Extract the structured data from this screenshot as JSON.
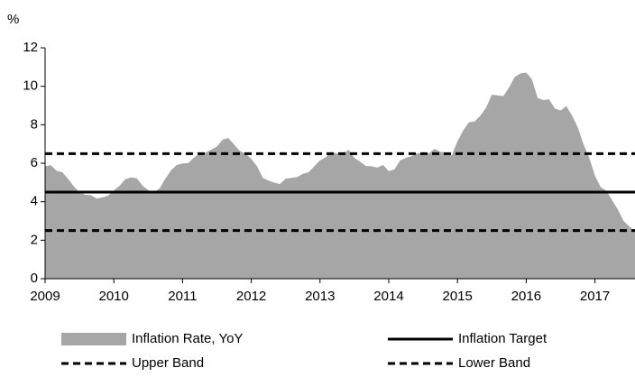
{
  "chart_data": {
    "type": "area",
    "y_label": "%",
    "x": [
      2009,
      2009.083,
      2009.167,
      2009.25,
      2009.333,
      2009.417,
      2009.5,
      2009.583,
      2009.667,
      2009.75,
      2009.833,
      2009.917,
      2010,
      2010.083,
      2010.167,
      2010.25,
      2010.333,
      2010.417,
      2010.5,
      2010.583,
      2010.667,
      2010.75,
      2010.833,
      2010.917,
      2011,
      2011.083,
      2011.167,
      2011.25,
      2011.333,
      2011.417,
      2011.5,
      2011.583,
      2011.667,
      2011.75,
      2011.833,
      2011.917,
      2012,
      2012.083,
      2012.167,
      2012.25,
      2012.333,
      2012.417,
      2012.5,
      2012.583,
      2012.667,
      2012.75,
      2012.833,
      2012.917,
      2013,
      2013.083,
      2013.167,
      2013.25,
      2013.333,
      2013.417,
      2013.5,
      2013.583,
      2013.667,
      2013.75,
      2013.833,
      2013.917,
      2014,
      2014.083,
      2014.167,
      2014.25,
      2014.333,
      2014.417,
      2014.5,
      2014.583,
      2014.667,
      2014.75,
      2014.833,
      2014.917,
      2015,
      2015.083,
      2015.167,
      2015.25,
      2015.333,
      2015.417,
      2015.5,
      2015.583,
      2015.667,
      2015.75,
      2015.833,
      2015.917,
      2016,
      2016.083,
      2016.167,
      2016.25,
      2016.333,
      2016.417,
      2016.5,
      2016.583,
      2016.667,
      2016.75,
      2016.833,
      2016.917,
      2017,
      2017.083,
      2017.167,
      2017.25,
      2017.333,
      2017.417,
      2017.5,
      2017.583
    ],
    "series": [
      {
        "name": "Inflation Rate, YoY",
        "color": "#a6a6a6",
        "values": [
          5.84,
          5.9,
          5.61,
          5.53,
          5.2,
          4.8,
          4.5,
          4.36,
          4.34,
          4.17,
          4.22,
          4.31,
          4.59,
          4.83,
          5.17,
          5.26,
          5.22,
          4.84,
          4.6,
          4.49,
          4.7,
          5.2,
          5.63,
          5.91,
          5.99,
          6.01,
          6.3,
          6.51,
          6.55,
          6.71,
          6.87,
          7.23,
          7.31,
          6.97,
          6.64,
          6.5,
          6.22,
          5.85,
          5.24,
          5.1,
          4.99,
          4.92,
          5.2,
          5.24,
          5.28,
          5.45,
          5.53,
          5.84,
          6.15,
          6.31,
          6.59,
          6.49,
          6.5,
          6.7,
          6.27,
          6.09,
          5.86,
          5.84,
          5.77,
          5.91,
          5.59,
          5.68,
          6.15,
          6.28,
          6.37,
          6.52,
          6.5,
          6.51,
          6.75,
          6.59,
          6.56,
          6.41,
          7.14,
          7.7,
          8.13,
          8.17,
          8.47,
          8.89,
          9.56,
          9.53,
          9.49,
          9.93,
          10.48,
          10.67,
          10.71,
          10.36,
          9.39,
          9.28,
          9.32,
          8.84,
          8.74,
          8.97,
          8.48,
          7.87,
          6.99,
          6.29,
          5.35,
          4.76,
          4.57,
          4.08,
          3.6,
          3.0,
          2.71,
          2.46
        ]
      }
    ],
    "reference_lines": [
      {
        "name": "Inflation Target",
        "value": 4.5,
        "color": "#000000",
        "dashed": false
      },
      {
        "name": "Upper Band",
        "value": 6.5,
        "color": "#000000",
        "dashed": true
      },
      {
        "name": "Lower Band",
        "value": 2.5,
        "color": "#000000",
        "dashed": true
      }
    ],
    "xlim": [
      2009,
      2017.583
    ],
    "xticks": [
      2009,
      2010,
      2011,
      2012,
      2013,
      2014,
      2015,
      2016,
      2017
    ],
    "ylim": [
      0,
      12
    ],
    "yticks": [
      0,
      2,
      4,
      6,
      8,
      10,
      12
    ],
    "grid": false
  }
}
